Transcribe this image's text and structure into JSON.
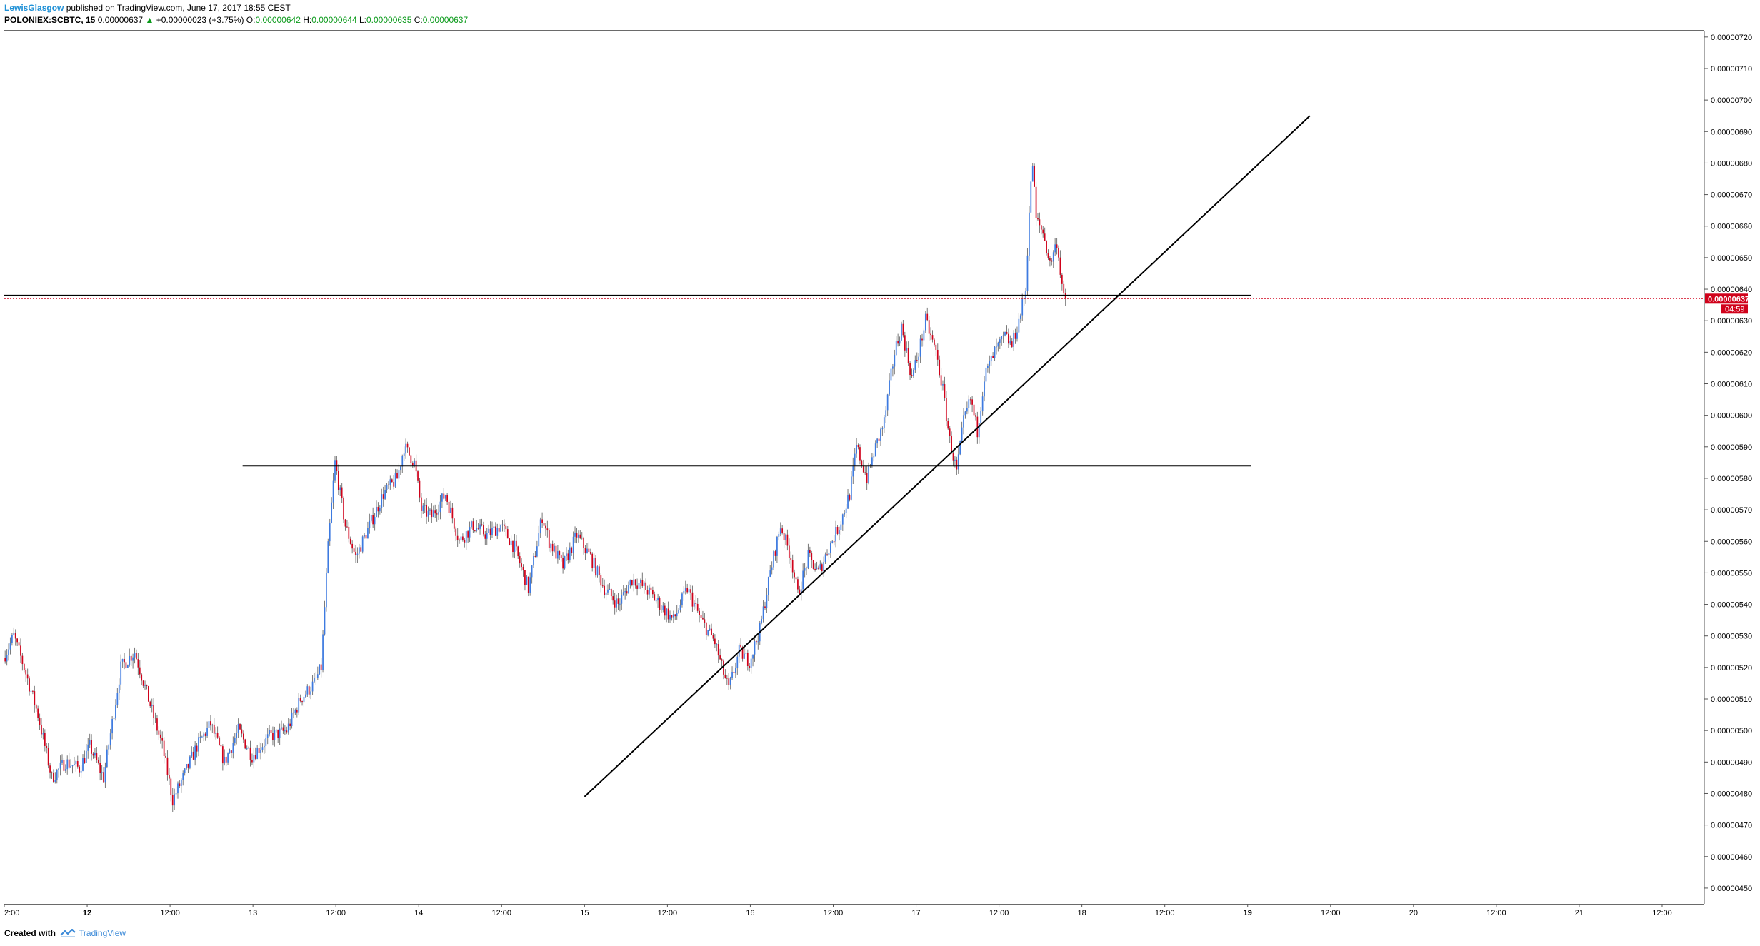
{
  "header": {
    "author": "LewisGlasgow",
    "published_text": " published on TradingView.com, June 17, 2017 18:55 CEST",
    "symbol": "POLONIEX:SCBTC, 15",
    "last": "0.00000637",
    "change_arrow": "▲",
    "change": "+0.00000023 (+3.75%)",
    "o_label": "O:",
    "o_value": "0.00000642",
    "h_label": "H:",
    "h_value": "0.00000644",
    "l_label": "L:",
    "l_value": "0.00000635",
    "c_label": "C:",
    "c_value": "0.00000637"
  },
  "footer": {
    "created_with": "Created with",
    "brand": "TradingView",
    "logo_icon": "tradingview-logo-icon"
  },
  "price_badge": {
    "value": "0.00000637",
    "timer": "04:59",
    "color": "#d0021b"
  },
  "colors": {
    "up": "#3d7ae0",
    "down": "#d0021b",
    "wick": "#777777",
    "line": "#000000"
  },
  "chart_data": {
    "type": "candlestick",
    "ylim": [
      4.45e-06,
      7.22e-06
    ],
    "xlim": [
      "2017-06-11 12:00",
      "2017-06-21 18:00"
    ],
    "y_ticks": [
      "0.00000720",
      "0.00000710",
      "0.00000700",
      "0.00000690",
      "0.00000680",
      "0.00000670",
      "0.00000660",
      "0.00000650",
      "0.00000640",
      "0.00000630",
      "0.00000620",
      "0.00000610",
      "0.00000600",
      "0.00000590",
      "0.00000580",
      "0.00000570",
      "0.00000560",
      "0.00000550",
      "0.00000540",
      "0.00000530",
      "0.00000520",
      "0.00000510",
      "0.00000500",
      "0.00000490",
      "0.00000480",
      "0.00000470",
      "0.00000460",
      "0.00000450"
    ],
    "x_ticks": [
      {
        "label": "2:00",
        "t": "2017-06-11 12:00",
        "bold": false
      },
      {
        "label": "12",
        "t": "2017-06-12 00:00",
        "bold": true
      },
      {
        "label": "12:00",
        "t": "2017-06-12 12:00",
        "bold": false
      },
      {
        "label": "13",
        "t": "2017-06-13 00:00",
        "bold": false
      },
      {
        "label": "12:00",
        "t": "2017-06-13 12:00",
        "bold": false
      },
      {
        "label": "14",
        "t": "2017-06-14 00:00",
        "bold": false
      },
      {
        "label": "12:00",
        "t": "2017-06-14 12:00",
        "bold": false
      },
      {
        "label": "15",
        "t": "2017-06-15 00:00",
        "bold": false
      },
      {
        "label": "12:00",
        "t": "2017-06-15 12:00",
        "bold": false
      },
      {
        "label": "16",
        "t": "2017-06-16 00:00",
        "bold": false
      },
      {
        "label": "12:00",
        "t": "2017-06-16 12:00",
        "bold": false
      },
      {
        "label": "17",
        "t": "2017-06-17 00:00",
        "bold": false
      },
      {
        "label": "12:00",
        "t": "2017-06-17 12:00",
        "bold": false
      },
      {
        "label": "18",
        "t": "2017-06-18 00:00",
        "bold": false
      },
      {
        "label": "12:00",
        "t": "2017-06-18 12:00",
        "bold": false
      },
      {
        "label": "19",
        "t": "2017-06-19 00:00",
        "bold": true
      },
      {
        "label": "12:00",
        "t": "2017-06-19 12:00",
        "bold": false
      },
      {
        "label": "20",
        "t": "2017-06-20 00:00",
        "bold": false
      },
      {
        "label": "12:00",
        "t": "2017-06-20 12:00",
        "bold": false
      },
      {
        "label": "21",
        "t": "2017-06-21 00:00",
        "bold": false
      },
      {
        "label": "12:00",
        "t": "2017-06-21 12:00",
        "bold": false
      }
    ],
    "last_price": 6.37e-06,
    "price_path": [
      [
        "2017-06-11 12:00",
        5.23e-06
      ],
      [
        "2017-06-11 13:30",
        5.3e-06
      ],
      [
        "2017-06-11 15:00",
        5.2e-06
      ],
      [
        "2017-06-11 17:00",
        5.05e-06
      ],
      [
        "2017-06-11 19:00",
        4.85e-06
      ],
      [
        "2017-06-11 21:00",
        4.9e-06
      ],
      [
        "2017-06-11 23:00",
        4.88e-06
      ],
      [
        "2017-06-12 00:30",
        4.95e-06
      ],
      [
        "2017-06-12 02:30",
        4.85e-06
      ],
      [
        "2017-06-12 05:00",
        5.2e-06
      ],
      [
        "2017-06-12 07:00",
        5.25e-06
      ],
      [
        "2017-06-12 09:00",
        5.1e-06
      ],
      [
        "2017-06-12 11:00",
        4.95e-06
      ],
      [
        "2017-06-12 12:30",
        4.78e-06
      ],
      [
        "2017-06-12 14:00",
        4.85e-06
      ],
      [
        "2017-06-12 16:00",
        4.95e-06
      ],
      [
        "2017-06-12 18:00",
        5.02e-06
      ],
      [
        "2017-06-12 20:00",
        4.9e-06
      ],
      [
        "2017-06-12 22:00",
        5e-06
      ],
      [
        "2017-06-13 00:00",
        4.92e-06
      ],
      [
        "2017-06-13 02:30",
        4.98e-06
      ],
      [
        "2017-06-13 05:00",
        5e-06
      ],
      [
        "2017-06-13 07:00",
        5.1e-06
      ],
      [
        "2017-06-13 09:00",
        5.15e-06
      ],
      [
        "2017-06-13 10:00",
        5.2e-06
      ],
      [
        "2017-06-13 11:00",
        5.58e-06
      ],
      [
        "2017-06-13 12:00",
        5.85e-06
      ],
      [
        "2017-06-13 13:30",
        5.65e-06
      ],
      [
        "2017-06-13 15:00",
        5.55e-06
      ],
      [
        "2017-06-13 17:00",
        5.65e-06
      ],
      [
        "2017-06-13 19:00",
        5.75e-06
      ],
      [
        "2017-06-13 21:00",
        5.8e-06
      ],
      [
        "2017-06-13 22:00",
        5.9e-06
      ],
      [
        "2017-06-13 23:30",
        5.85e-06
      ],
      [
        "2017-06-14 00:30",
        5.7e-06
      ],
      [
        "2017-06-14 02:00",
        5.68e-06
      ],
      [
        "2017-06-14 04:00",
        5.75e-06
      ],
      [
        "2017-06-14 06:00",
        5.6e-06
      ],
      [
        "2017-06-14 08:00",
        5.65e-06
      ],
      [
        "2017-06-14 10:00",
        5.62e-06
      ],
      [
        "2017-06-14 12:00",
        5.65e-06
      ],
      [
        "2017-06-14 14:00",
        5.58e-06
      ],
      [
        "2017-06-14 16:00",
        5.45e-06
      ],
      [
        "2017-06-14 18:00",
        5.68e-06
      ],
      [
        "2017-06-14 19:00",
        5.6e-06
      ],
      [
        "2017-06-14 21:00",
        5.52e-06
      ],
      [
        "2017-06-14 23:00",
        5.62e-06
      ],
      [
        "2017-06-15 01:00",
        5.55e-06
      ],
      [
        "2017-06-15 03:00",
        5.45e-06
      ],
      [
        "2017-06-15 05:00",
        5.4e-06
      ],
      [
        "2017-06-15 07:00",
        5.48e-06
      ],
      [
        "2017-06-15 09:00",
        5.45e-06
      ],
      [
        "2017-06-15 11:00",
        5.4e-06
      ],
      [
        "2017-06-15 13:00",
        5.35e-06
      ],
      [
        "2017-06-15 15:00",
        5.45e-06
      ],
      [
        "2017-06-15 17:00",
        5.35e-06
      ],
      [
        "2017-06-15 19:00",
        5.28e-06
      ],
      [
        "2017-06-15 20:00",
        5.2e-06
      ],
      [
        "2017-06-15 21:00",
        5.13e-06
      ],
      [
        "2017-06-15 22:30",
        5.25e-06
      ],
      [
        "2017-06-16 00:00",
        5.22e-06
      ],
      [
        "2017-06-16 01:30",
        5.32e-06
      ],
      [
        "2017-06-16 03:00",
        5.5e-06
      ],
      [
        "2017-06-16 04:30",
        5.65e-06
      ],
      [
        "2017-06-16 06:00",
        5.55e-06
      ],
      [
        "2017-06-16 07:00",
        5.43e-06
      ],
      [
        "2017-06-16 08:30",
        5.55e-06
      ],
      [
        "2017-06-16 10:00",
        5.5e-06
      ],
      [
        "2017-06-16 11:30",
        5.58e-06
      ],
      [
        "2017-06-16 13:00",
        5.65e-06
      ],
      [
        "2017-06-16 14:30",
        5.75e-06
      ],
      [
        "2017-06-16 15:30",
        5.9e-06
      ],
      [
        "2017-06-16 17:00",
        5.8e-06
      ],
      [
        "2017-06-16 18:00",
        5.88e-06
      ],
      [
        "2017-06-16 19:30",
        5.98e-06
      ],
      [
        "2017-06-16 21:00",
        6.2e-06
      ],
      [
        "2017-06-16 22:00",
        6.28e-06
      ],
      [
        "2017-06-16 23:30",
        6.12e-06
      ],
      [
        "2017-06-17 00:30",
        6.2e-06
      ],
      [
        "2017-06-17 01:30",
        6.3e-06
      ],
      [
        "2017-06-17 03:00",
        6.2e-06
      ],
      [
        "2017-06-17 04:00",
        6.08e-06
      ],
      [
        "2017-06-17 05:00",
        5.92e-06
      ],
      [
        "2017-06-17 06:00",
        5.82e-06
      ],
      [
        "2017-06-17 07:00",
        5.98e-06
      ],
      [
        "2017-06-17 08:00",
        6.05e-06
      ],
      [
        "2017-06-17 09:00",
        5.95e-06
      ],
      [
        "2017-06-17 10:00",
        6.12e-06
      ],
      [
        "2017-06-17 11:30",
        6.2e-06
      ],
      [
        "2017-06-17 13:00",
        6.25e-06
      ],
      [
        "2017-06-17 14:00",
        6.22e-06
      ],
      [
        "2017-06-17 15:00",
        6.3e-06
      ],
      [
        "2017-06-17 16:00",
        6.4e-06
      ],
      [
        "2017-06-17 16:30",
        6.65e-06
      ],
      [
        "2017-06-17 17:00",
        6.8e-06
      ],
      [
        "2017-06-17 17:30",
        6.62e-06
      ],
      [
        "2017-06-17 18:30",
        6.58e-06
      ],
      [
        "2017-06-17 19:30",
        6.48e-06
      ],
      [
        "2017-06-17 20:30",
        6.55e-06
      ],
      [
        "2017-06-17 21:00",
        6.46e-06
      ],
      [
        "2017-06-17 21:30",
        6.37e-06
      ]
    ],
    "annotations": [
      {
        "type": "hline",
        "value": 6.38e-06,
        "from": "2017-06-11 12:00",
        "to": "2017-06-19 00:30"
      },
      {
        "type": "hline",
        "value": 5.84e-06,
        "from": "2017-06-12 22:30",
        "to": "2017-06-19 00:30"
      },
      {
        "type": "trendline",
        "from": [
          "2017-06-15 00:00",
          4.79e-06
        ],
        "to": [
          "2017-06-19 09:00",
          6.95e-06
        ]
      }
    ]
  }
}
